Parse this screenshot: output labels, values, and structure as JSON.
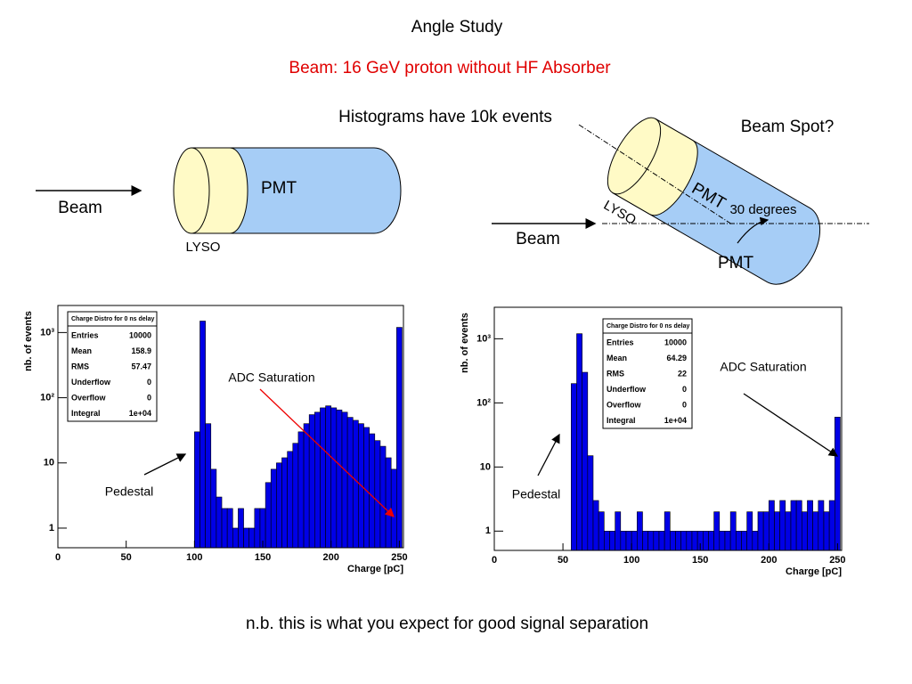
{
  "slide": {
    "title": "Angle Study",
    "subtitle": "Beam: 16 GeV proton without HF Absorber",
    "note": "Histograms have 10k events",
    "footer": "n.b. this is what you expect for good signal separation"
  },
  "diagram_left": {
    "beam": "Beam",
    "pmt": "PMT",
    "lyso": "LYSO"
  },
  "diagram_right": {
    "beam": "Beam",
    "pmt": "PMT",
    "pmt_label": "PMT",
    "lyso": "LYSO",
    "angle": "30 degrees",
    "spot": "Beam Spot?"
  },
  "chart_data": [
    {
      "type": "histogram",
      "xlabel": "Charge [pC]",
      "ylabel": "nb. of events",
      "color": "#0000e6",
      "log_y": true,
      "xlim": [
        0,
        253
      ],
      "ylim": [
        0.5,
        2600
      ],
      "xticks": [
        0,
        50,
        100,
        150,
        200,
        250
      ],
      "yticks": [
        1,
        10,
        {
          "value": 100,
          "label": "10²"
        },
        {
          "value": 1000,
          "label": "10³"
        }
      ],
      "bins": [
        100,
        104,
        108,
        112,
        116,
        120,
        124,
        128,
        132,
        136,
        140,
        144,
        148,
        152,
        156,
        160,
        164,
        168,
        172,
        176,
        180,
        184,
        188,
        192,
        196,
        200,
        204,
        208,
        212,
        216,
        220,
        224,
        228,
        232,
        236,
        240,
        244,
        248,
        252
      ],
      "counts": [
        30,
        1500,
        40,
        8,
        3,
        2,
        2,
        1,
        2,
        1,
        1,
        2,
        2,
        5,
        8,
        10,
        12,
        15,
        20,
        30,
        40,
        55,
        60,
        70,
        75,
        70,
        65,
        60,
        50,
        45,
        40,
        35,
        28,
        22,
        18,
        12,
        8,
        1200
      ],
      "stats": {
        "title": "Charge Distro for 0 ns delay",
        "rows": [
          [
            "Entries",
            "10000"
          ],
          [
            "Mean",
            "158.9"
          ],
          [
            "RMS",
            "57.47"
          ],
          [
            "Underflow",
            "0"
          ],
          [
            "Overflow",
            "0"
          ],
          [
            "Integral",
            "1e+04"
          ]
        ]
      },
      "annotations": {
        "pedestal": "Pedestal",
        "saturation": "ADC Saturation"
      }
    },
    {
      "type": "histogram",
      "xlabel": "Charge [pC]",
      "ylabel": "nb. of events",
      "color": "#0000e6",
      "log_y": true,
      "xlim": [
        0,
        253
      ],
      "ylim": [
        0.5,
        3100
      ],
      "xticks": [
        0,
        50,
        100,
        150,
        200,
        250
      ],
      "yticks": [
        1,
        10,
        {
          "value": 100,
          "label": "10²"
        },
        {
          "value": 1000,
          "label": "10³"
        }
      ],
      "bins": [
        56,
        60,
        64,
        68,
        72,
        76,
        80,
        84,
        88,
        92,
        96,
        100,
        104,
        108,
        112,
        116,
        120,
        124,
        128,
        132,
        136,
        140,
        144,
        148,
        152,
        156,
        160,
        164,
        168,
        172,
        176,
        180,
        184,
        188,
        192,
        196,
        200,
        204,
        208,
        212,
        216,
        220,
        224,
        228,
        232,
        236,
        240,
        244,
        248,
        252
      ],
      "counts": [
        200,
        1200,
        300,
        15,
        3,
        2,
        1,
        1,
        2,
        1,
        1,
        1,
        2,
        1,
        1,
        1,
        1,
        2,
        1,
        1,
        1,
        1,
        1,
        1,
        1,
        1,
        2,
        1,
        1,
        2,
        1,
        1,
        2,
        1,
        2,
        2,
        3,
        2,
        3,
        2,
        3,
        3,
        2,
        3,
        2,
        3,
        2,
        3,
        60
      ],
      "stats": {
        "title": "Charge Distro for 0 ns delay",
        "rows": [
          [
            "Entries",
            "10000"
          ],
          [
            "Mean",
            "64.29"
          ],
          [
            "RMS",
            "22"
          ],
          [
            "Underflow",
            "0"
          ],
          [
            "Overflow",
            "0"
          ],
          [
            "Integral",
            "1e+04"
          ]
        ]
      },
      "annotations": {
        "pedestal": "Pedestal",
        "saturation": "ADC Saturation"
      }
    }
  ]
}
